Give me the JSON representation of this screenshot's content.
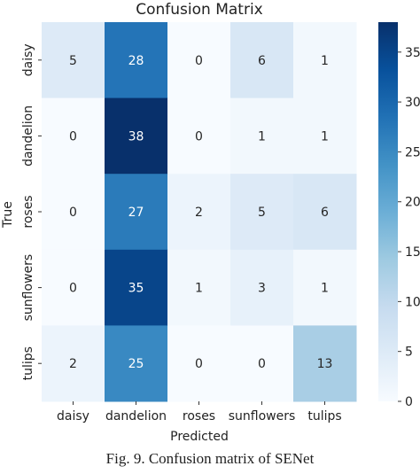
{
  "chart_data": {
    "type": "heatmap",
    "title": "Confusion Matrix",
    "xlabel": "Predicted",
    "ylabel": "True",
    "x_categories": [
      "daisy",
      "dandelion",
      "roses",
      "sunflowers",
      "tulips"
    ],
    "y_categories": [
      "daisy",
      "dandelion",
      "roses",
      "sunflowers",
      "tulips"
    ],
    "values": [
      [
        5,
        28,
        0,
        6,
        1
      ],
      [
        0,
        38,
        0,
        1,
        1
      ],
      [
        0,
        27,
        2,
        5,
        6
      ],
      [
        0,
        35,
        1,
        3,
        1
      ],
      [
        2,
        25,
        0,
        0,
        13
      ]
    ],
    "colorbar": {
      "colormap": "Blues",
      "range": [
        0,
        38
      ],
      "ticks": [
        0,
        5,
        10,
        15,
        20,
        25,
        30,
        35
      ]
    }
  },
  "caption": "Fig. 9.   Confusion matrix of SENet"
}
